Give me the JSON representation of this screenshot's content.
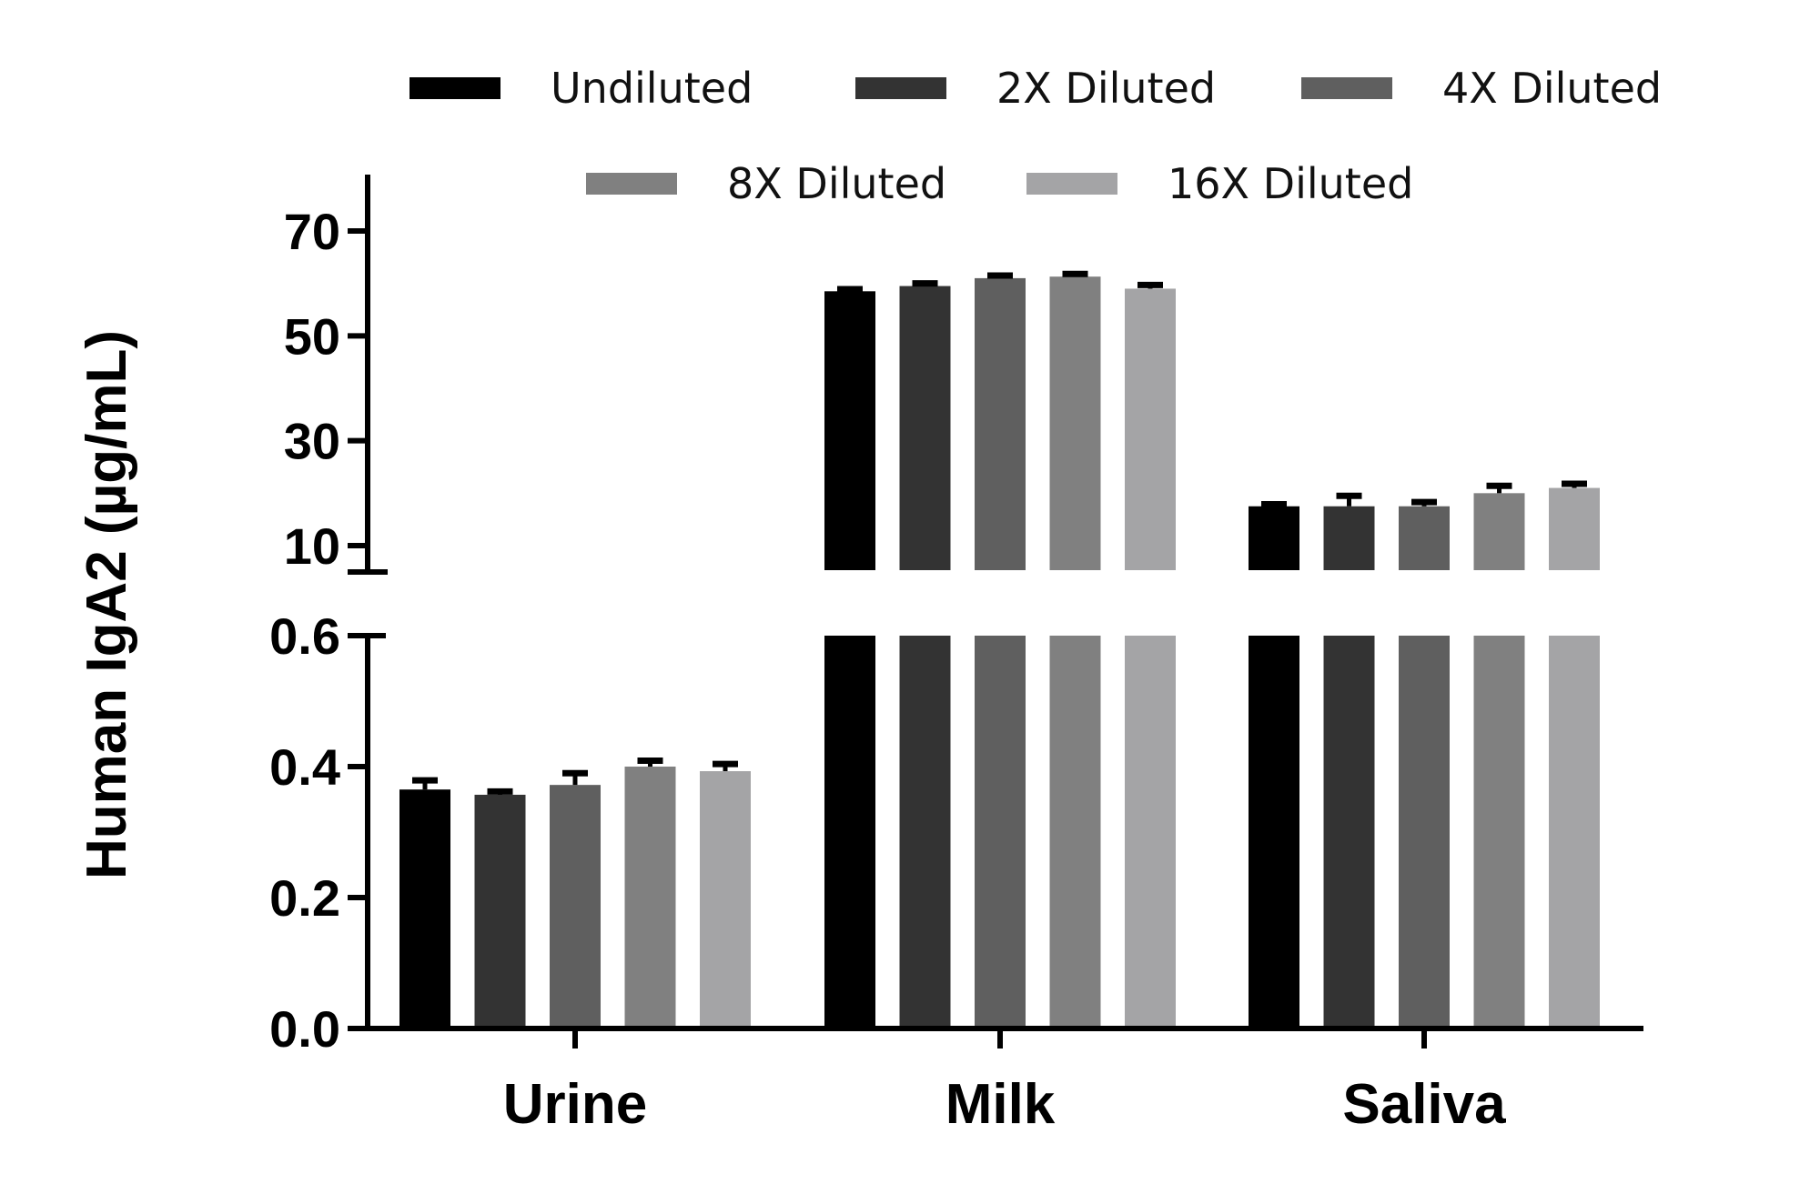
{
  "chart_data": {
    "type": "bar",
    "title": "",
    "xlabel": "",
    "ylabel": "Human IgA2 (µg/mL)",
    "categories": [
      "Urine",
      "Milk",
      "Saliva"
    ],
    "series": [
      {
        "name": "Undiluted",
        "color": "#000000",
        "values": [
          0.365,
          58.5,
          17.5
        ],
        "errors": [
          0.014,
          0.4,
          0.4
        ]
      },
      {
        "name": "2X Diluted",
        "color": "#333333",
        "values": [
          0.357,
          59.5,
          17.5
        ],
        "errors": [
          0.005,
          0.5,
          2.0
        ]
      },
      {
        "name": "4X Diluted",
        "color": "#5f5f5f",
        "values": [
          0.372,
          61.0,
          17.5
        ],
        "errors": [
          0.018,
          0.5,
          0.8
        ]
      },
      {
        "name": "8X Diluted",
        "color": "#808080",
        "values": [
          0.4,
          61.3,
          20.0
        ],
        "errors": [
          0.009,
          0.5,
          1.4
        ]
      },
      {
        "name": "16X Diluted",
        "color": "#a4a4a6",
        "values": [
          0.393,
          59.0,
          21.0
        ],
        "errors": [
          0.011,
          0.7,
          0.8
        ]
      }
    ],
    "y_axis_segments": [
      {
        "range": [
          0,
          0.6
        ],
        "ticks": [
          0.0,
          0.2,
          0.4,
          0.6
        ],
        "tick_labels": [
          "0.0",
          "0.2",
          "0.4",
          "0.6"
        ]
      },
      {
        "range": [
          5,
          80
        ],
        "ticks": [
          10,
          30,
          50,
          70
        ],
        "tick_labels": [
          "10",
          "30",
          "50",
          "70"
        ]
      }
    ],
    "axis_break": true,
    "legend_position": "top",
    "grid": false
  }
}
